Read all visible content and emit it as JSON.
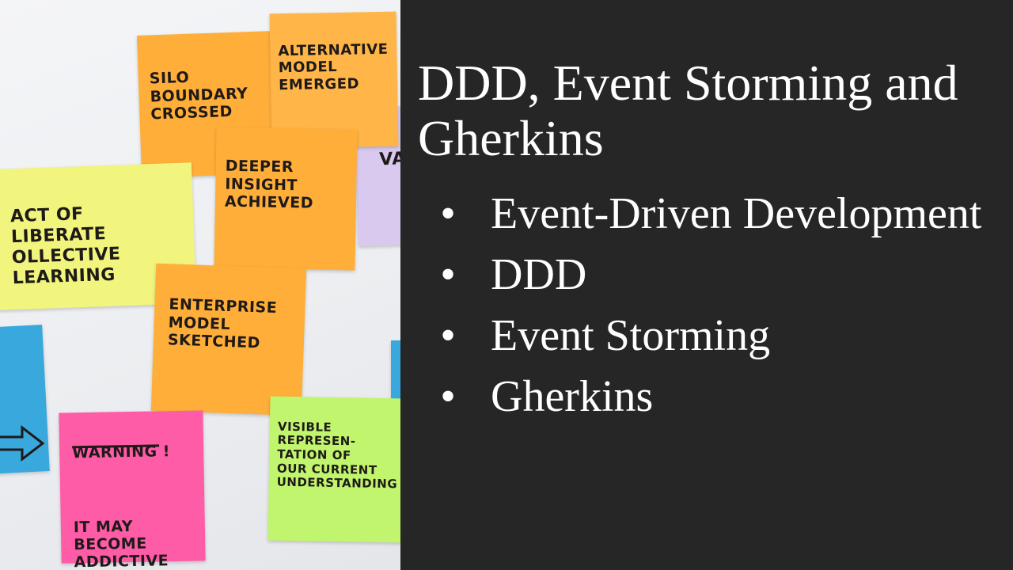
{
  "slide": {
    "title": "DDD, Event Storming and Gherkins",
    "bullet_glyph": "•",
    "bullets": [
      "Event-Driven Development",
      "DDD",
      "Event Storming",
      "Gherkins"
    ]
  },
  "photo": {
    "notes": {
      "silo": "SILO\nBOUNDARY\nCROSSED",
      "alternative": "ALTERNATIVE\nMODEL\nEMERGED",
      "va": "VA",
      "deeper": "DEEPER\nINSIGHT\nACHIEVED",
      "learning": "ACT OF\nLIBERATE\nOLLECTIVE\nLEARNING",
      "enterprise": "ENTERPRISE\nMODEL\nSKETCHED",
      "warning_title": "WARNING !",
      "warning_body": "IT MAY\nBECOME\nADDICTIVE",
      "visible": "VISIBLE\nREPRESEN-\nTATION OF\nOUR CURRENT\nUNDERSTANDING"
    },
    "colors": {
      "yellow": "#f1f57e",
      "orange": "#ffae3a",
      "pink": "#ff5ca8",
      "green": "#c2f56e",
      "blue": "#38a8dd",
      "lilac": "#d9c9ef"
    }
  }
}
